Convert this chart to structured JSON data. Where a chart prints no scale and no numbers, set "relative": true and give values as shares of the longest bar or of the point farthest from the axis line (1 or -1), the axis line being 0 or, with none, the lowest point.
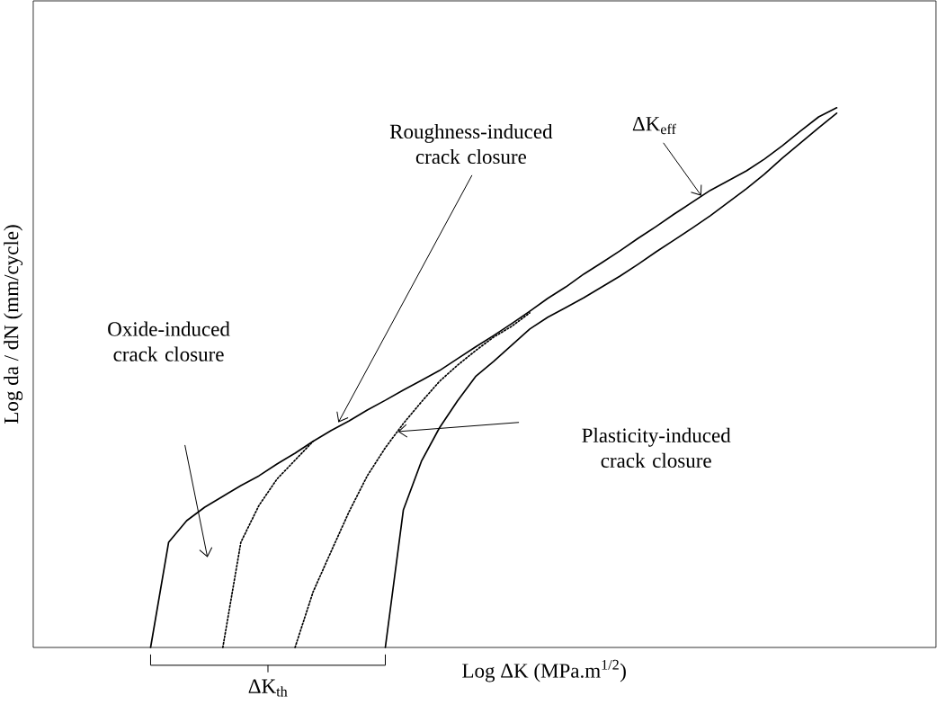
{
  "chart_data": {
    "type": "line",
    "relative": true,
    "xlabel": "Log ΔK (MPa.m$^{1/2}$)",
    "ylabel": "Log da / dN (mm/cycle)",
    "categories": [
      null,
      null,
      null,
      null,
      null,
      null,
      null,
      null,
      null,
      null,
      null,
      null,
      null,
      null,
      null,
      null,
      null,
      null,
      null,
      null,
      null,
      null,
      null,
      null,
      null,
      null,
      null,
      null,
      null,
      null,
      null,
      null,
      null,
      null,
      null,
      null,
      null,
      null,
      null,
      null,
      null,
      null,
      null,
      null,
      null,
      null,
      null,
      null,
      null,
      null
    ],
    "series": [
      {
        "color": "#000000",
        "line_style": "solid",
        "values": [
          null,
          null,
          null,
          null,
          null,
          null,
          0,
          0.195,
          0.235,
          0.26,
          0.28,
          0.3,
          0.318,
          0.34,
          0.36,
          0.382,
          0.402,
          0.42,
          0.44,
          0.458,
          0.477,
          0.495,
          0.513,
          0.535,
          0.557,
          0.578,
          0.6,
          0.623,
          0.647,
          0.668,
          0.692,
          0.713,
          0.735,
          0.758,
          0.78,
          0.803,
          0.825,
          0.847,
          0.865,
          0.883,
          0.905,
          0.93,
          0.957,
          0.983,
          1.0,
          null,
          null,
          null,
          null,
          null
        ]
      },
      {
        "color": "#000000",
        "line_style": "dotted",
        "values": [
          null,
          null,
          null,
          null,
          null,
          null,
          null,
          null,
          null,
          null,
          0,
          0.195,
          0.263,
          0.312,
          0.347,
          0.382,
          null,
          null,
          null,
          null,
          null,
          null,
          null,
          null,
          null,
          null,
          null,
          null,
          null,
          null,
          null,
          null,
          null,
          null,
          null,
          null,
          null,
          null,
          null,
          null,
          null,
          null,
          null,
          null,
          null,
          null,
          null,
          null,
          null,
          null
        ]
      },
      {
        "color": "#000000",
        "line_style": "dotted",
        "values": [
          null,
          null,
          null,
          null,
          null,
          null,
          null,
          null,
          null,
          null,
          null,
          null,
          null,
          null,
          0,
          0.103,
          0.178,
          0.252,
          0.318,
          0.37,
          0.415,
          0.455,
          0.493,
          0.523,
          0.55,
          0.575,
          0.595,
          0.62,
          null,
          null,
          null,
          null,
          null,
          null,
          null,
          null,
          null,
          null,
          null,
          null,
          null,
          null,
          null,
          null,
          null,
          null,
          null,
          null,
          null,
          null
        ]
      },
      {
        "color": "#000000",
        "line_style": "solid",
        "values": [
          null,
          null,
          null,
          null,
          null,
          null,
          null,
          null,
          null,
          null,
          null,
          null,
          null,
          null,
          null,
          null,
          null,
          null,
          null,
          0,
          0.255,
          0.345,
          0.407,
          0.457,
          0.502,
          0.53,
          0.56,
          0.59,
          0.612,
          0.63,
          0.648,
          0.668,
          0.688,
          0.71,
          0.733,
          0.755,
          0.777,
          0.8,
          0.825,
          0.85,
          0.877,
          0.907,
          0.935,
          0.963,
          0.99,
          null,
          null,
          null,
          null,
          null
        ]
      }
    ],
    "annotations": [
      "ΔK$_{eff}$",
      "Roughness-induced crack closure",
      "Oxide-induced crack closure",
      "Plasticity-induced crack closure",
      "ΔK$_{th}$"
    ]
  }
}
